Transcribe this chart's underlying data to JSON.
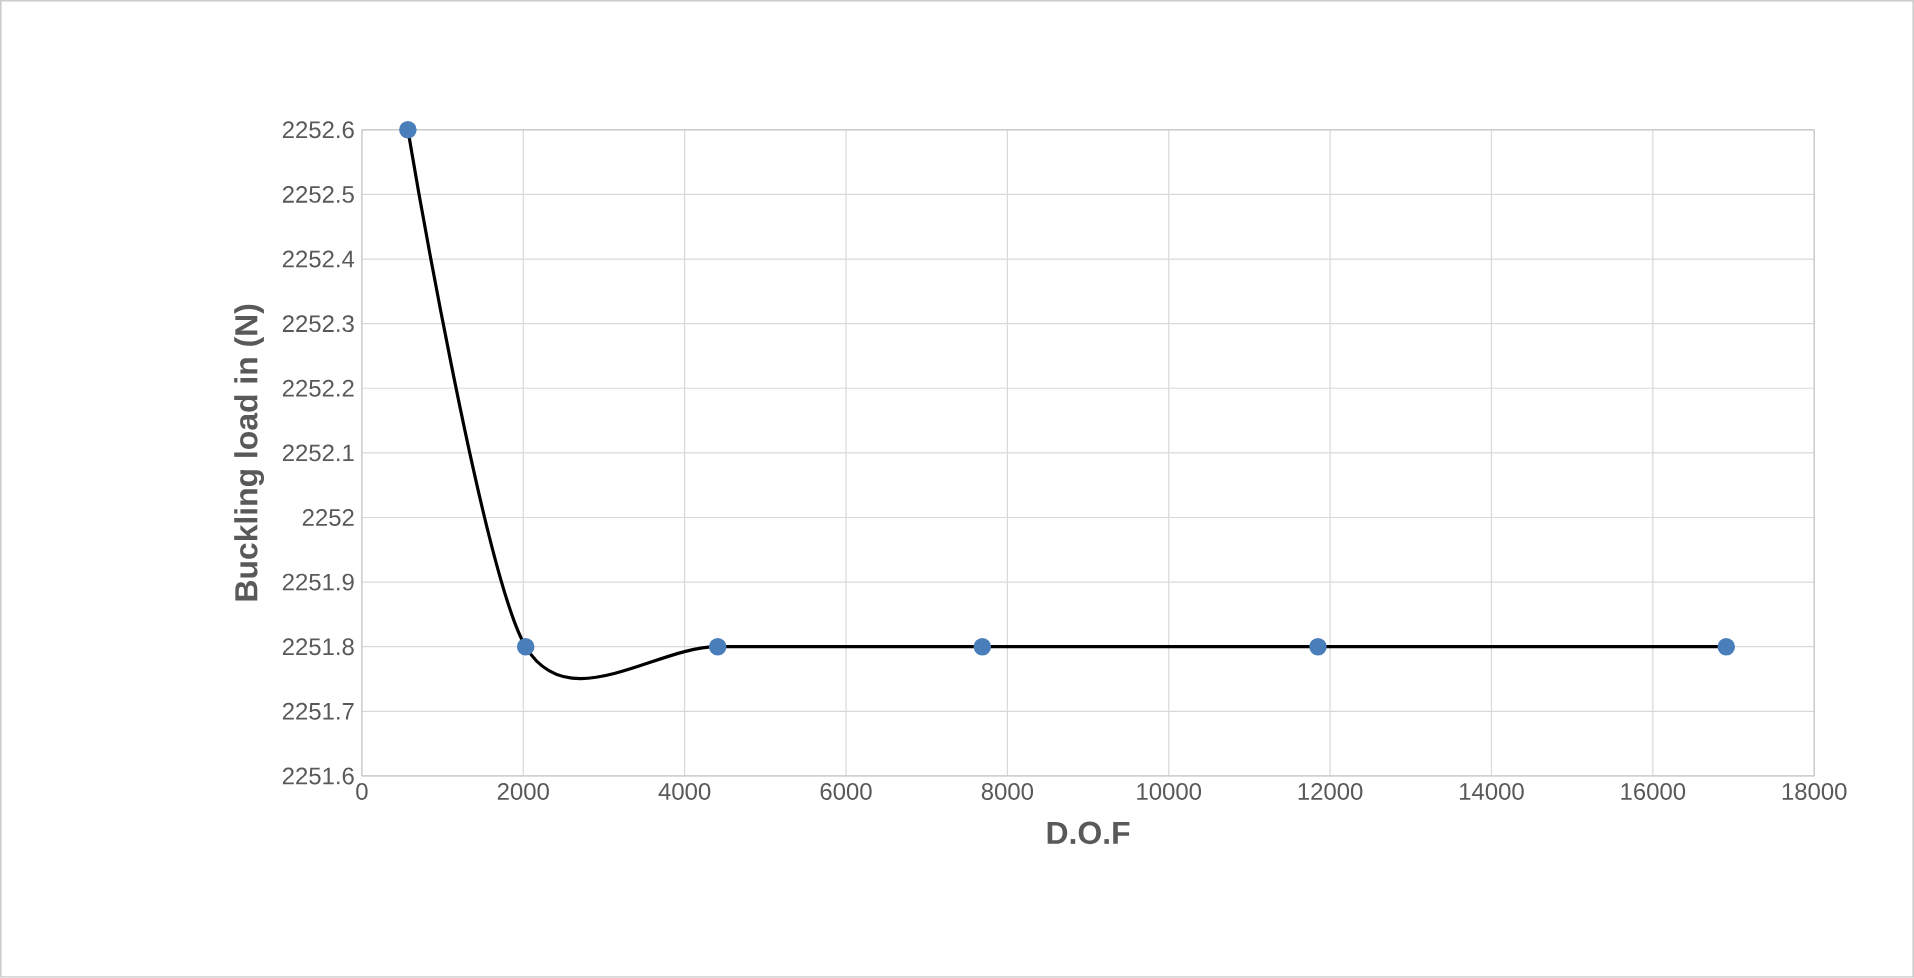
{
  "chart_data": {
    "type": "line",
    "xlabel": "D.O.F",
    "ylabel": "Buckling load in (N)",
    "xlim": [
      0,
      18000
    ],
    "xticks": [
      0,
      2000,
      4000,
      6000,
      8000,
      10000,
      12000,
      14000,
      16000,
      18000
    ],
    "ylim": [
      2251.6,
      2252.6
    ],
    "yticks": [
      2251.6,
      2251.7,
      2251.8,
      2251.9,
      2252,
      2252.1,
      2252.2,
      2252.3,
      2252.4,
      2252.5,
      2252.6
    ],
    "grid": true,
    "marker": "circle",
    "line_style": "solid",
    "series": [
      {
        "color": "#4a7ebb",
        "x": [
          570,
          2030,
          4410,
          7690,
          11850,
          16910
        ],
        "values": [
          2252.6,
          2251.8,
          2251.8,
          2251.8,
          2251.8,
          2251.8
        ]
      }
    ]
  }
}
